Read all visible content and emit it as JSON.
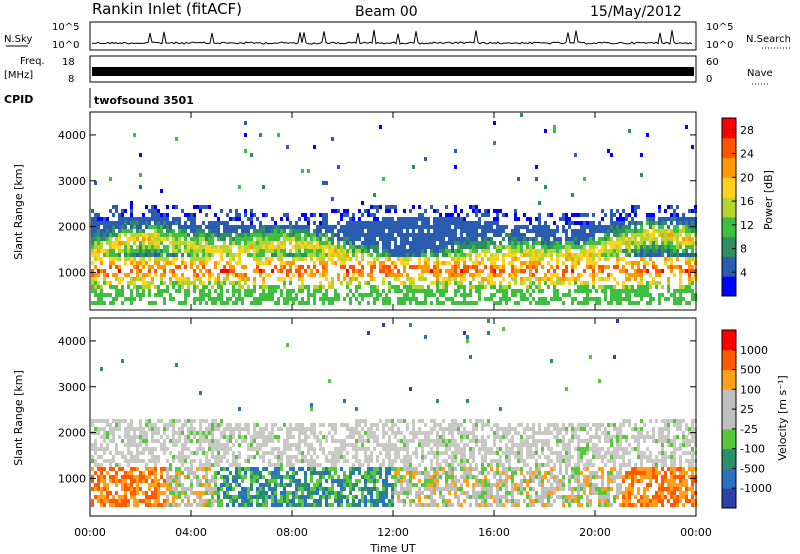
{
  "header": {
    "station": "Rankin Inlet (fitACF)",
    "beam": "Beam 00",
    "date": "15/May/2012"
  },
  "top_panels": {
    "nsky": {
      "label": "N.Sky",
      "ticks": [
        "10^5",
        "10^0"
      ],
      "right_ticks": [
        "10^5",
        "10^0"
      ],
      "right_label": "N.Search"
    },
    "freq": {
      "label_line1": "Freq.",
      "label_line2": "[MHz]",
      "ticks": [
        "18",
        "8"
      ],
      "right_ticks": [
        "60",
        "0"
      ],
      "right_label": "Nave"
    },
    "cpid": {
      "label": "CPID",
      "value": "twofsound 3501"
    }
  },
  "colors": {
    "power_scale": [
      "#0000ff",
      "#2a5cb0",
      "#2e8f5e",
      "#3fbf3f",
      "#b5d430",
      "#ffd21f",
      "#ff9900",
      "#ff5500",
      "#ff0000"
    ],
    "velocity_scale": [
      "#2e3fa8",
      "#2a72c0",
      "#2a8f6a",
      "#56c83a",
      "#bfbfbf",
      "#bfbfbf",
      "#ff9f1a",
      "#ff5a00",
      "#ff0000"
    ]
  },
  "chart_data": [
    {
      "type": "heatmap",
      "name": "Power",
      "ylabel": "Slant Range [km]",
      "yticks": [
        1000,
        2000,
        3000,
        4000
      ],
      "ylim": [
        180,
        4500
      ],
      "colorbar_label": "Power [dB]",
      "colorbar_ticks": [
        4,
        8,
        12,
        16,
        20,
        24,
        28
      ],
      "colorbar_range": [
        0,
        30
      ]
    },
    {
      "type": "heatmap",
      "name": "Velocity",
      "ylabel": "Slant Range [km]",
      "yticks": [
        1000,
        2000,
        3000,
        4000
      ],
      "ylim": [
        180,
        4500
      ],
      "colorbar_label": "Velocity [m s⁻¹]",
      "colorbar_ticks": [
        "1000",
        "500",
        "100",
        "25",
        "-25",
        "-100",
        "-500",
        "-1000"
      ]
    }
  ],
  "x_axis": {
    "label": "Time UT",
    "ticks": [
      "00:00",
      "04:00",
      "08:00",
      "12:00",
      "16:00",
      "20:00",
      "00:00"
    ]
  }
}
